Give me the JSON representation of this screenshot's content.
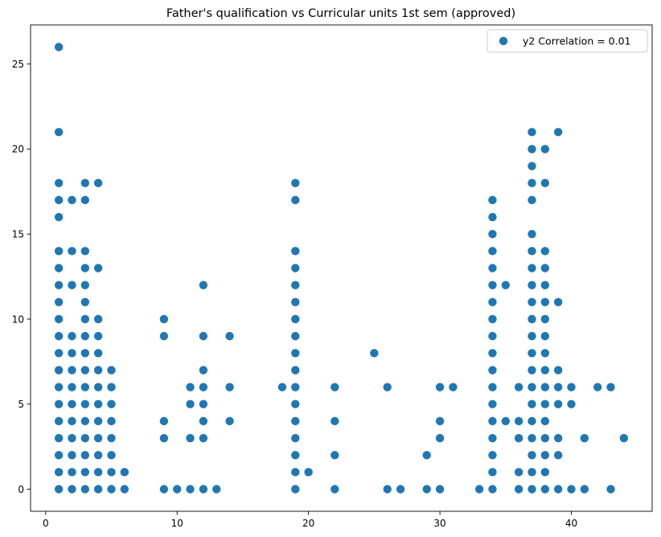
{
  "chart_data": {
    "type": "scatter",
    "title": "Father's qualification vs Curricular units 1st sem (approved)",
    "xlabel": "",
    "ylabel": "",
    "xlim": [
      -1.15,
      46.15
    ],
    "ylim": [
      -1.3,
      27.3
    ],
    "xticks": [
      0,
      10,
      20,
      30,
      40
    ],
    "yticks": [
      0,
      5,
      10,
      15,
      20,
      25
    ],
    "grid": false,
    "legend_position": "top-right",
    "series_color": "#1f77b4",
    "series": [
      {
        "name": "y2 Correlation = 0.01",
        "columns": [
          {
            "x": 1,
            "y": [
              0,
              1,
              2,
              3,
              4,
              5,
              6,
              7,
              8,
              9,
              10,
              11,
              12,
              13,
              14,
              16,
              17,
              18,
              21,
              26
            ]
          },
          {
            "x": 2,
            "y": [
              0,
              1,
              2,
              3,
              4,
              5,
              6,
              7,
              8,
              9,
              12,
              14,
              17
            ]
          },
          {
            "x": 3,
            "y": [
              0,
              1,
              2,
              3,
              4,
              5,
              6,
              7,
              8,
              9,
              10,
              11,
              12,
              13,
              14,
              17,
              18
            ]
          },
          {
            "x": 4,
            "y": [
              0,
              1,
              2,
              3,
              4,
              5,
              6,
              7,
              8,
              9,
              10,
              13,
              18
            ]
          },
          {
            "x": 5,
            "y": [
              0,
              1,
              2,
              3,
              4,
              5,
              6,
              7
            ]
          },
          {
            "x": 6,
            "y": [
              0,
              1
            ]
          },
          {
            "x": 9,
            "y": [
              0,
              3,
              4,
              9,
              10
            ]
          },
          {
            "x": 10,
            "y": [
              0
            ]
          },
          {
            "x": 11,
            "y": [
              0,
              3,
              5,
              6
            ]
          },
          {
            "x": 12,
            "y": [
              0,
              3,
              4,
              5,
              6,
              7,
              9,
              12
            ]
          },
          {
            "x": 13,
            "y": [
              0
            ]
          },
          {
            "x": 14,
            "y": [
              4,
              6,
              9
            ]
          },
          {
            "x": 18,
            "y": [
              6
            ]
          },
          {
            "x": 19,
            "y": [
              0,
              1,
              2,
              3,
              4,
              5,
              6,
              7,
              8,
              9,
              10,
              11,
              12,
              13,
              14,
              17,
              18
            ]
          },
          {
            "x": 20,
            "y": [
              1
            ]
          },
          {
            "x": 22,
            "y": [
              0,
              2,
              4,
              6
            ]
          },
          {
            "x": 25,
            "y": [
              8
            ]
          },
          {
            "x": 26,
            "y": [
              0,
              6
            ]
          },
          {
            "x": 27,
            "y": [
              0
            ]
          },
          {
            "x": 29,
            "y": [
              0,
              2
            ]
          },
          {
            "x": 30,
            "y": [
              0,
              3,
              4,
              6
            ]
          },
          {
            "x": 31,
            "y": [
              6
            ]
          },
          {
            "x": 33,
            "y": [
              0
            ]
          },
          {
            "x": 34,
            "y": [
              0,
              1,
              2,
              3,
              4,
              5,
              6,
              7,
              8,
              9,
              10,
              11,
              12,
              13,
              14,
              15,
              16,
              17
            ]
          },
          {
            "x": 35,
            "y": [
              4,
              12
            ]
          },
          {
            "x": 36,
            "y": [
              0,
              1,
              3,
              4,
              6
            ]
          },
          {
            "x": 37,
            "y": [
              0,
              1,
              2,
              3,
              4,
              5,
              6,
              7,
              8,
              9,
              10,
              11,
              12,
              13,
              14,
              15,
              17,
              18,
              19,
              20,
              21
            ]
          },
          {
            "x": 38,
            "y": [
              0,
              1,
              2,
              3,
              4,
              5,
              6,
              7,
              8,
              9,
              10,
              11,
              12,
              13,
              14,
              18,
              20
            ]
          },
          {
            "x": 39,
            "y": [
              0,
              2,
              3,
              5,
              6,
              7,
              11,
              21
            ]
          },
          {
            "x": 40,
            "y": [
              0,
              5,
              6
            ]
          },
          {
            "x": 41,
            "y": [
              0,
              3
            ]
          },
          {
            "x": 42,
            "y": [
              6
            ]
          },
          {
            "x": 43,
            "y": [
              0,
              6
            ]
          },
          {
            "x": 44,
            "y": [
              3
            ]
          }
        ]
      }
    ]
  }
}
